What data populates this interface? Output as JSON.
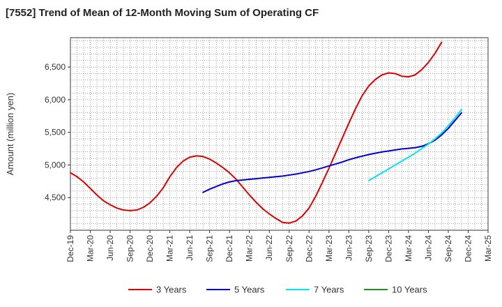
{
  "chart_data": {
    "type": "line",
    "title": "[7552]  Trend of Mean of 12-Month Moving Sum of Operating CF",
    "xlabel": "",
    "ylabel": "Amount (million yen)",
    "ylim": [
      4000,
      6950
    ],
    "yticks": [
      4500,
      5000,
      5500,
      6000,
      6500
    ],
    "ytick_labels": [
      "4,500",
      "5,000",
      "5,500",
      "6,000",
      "6,500"
    ],
    "x_start": "Dec-19",
    "x_months_span": 63,
    "xticks": [
      "Dec-19",
      "Mar-20",
      "Jun-20",
      "Sep-20",
      "Dec-20",
      "Mar-21",
      "Jun-21",
      "Sep-21",
      "Dec-21",
      "Mar-22",
      "Jun-22",
      "Sep-22",
      "Dec-22",
      "Mar-23",
      "Jun-23",
      "Sep-23",
      "Dec-23",
      "Mar-24",
      "Jun-24",
      "Sep-24",
      "Dec-24",
      "Mar-25"
    ],
    "grid": true,
    "legend_position": "bottom",
    "series": [
      {
        "name": "3 Years",
        "color": "#dd0000",
        "start_month": 0,
        "values": [
          4880,
          4820,
          4740,
          4640,
          4540,
          4450,
          4390,
          4340,
          4310,
          4300,
          4310,
          4350,
          4420,
          4520,
          4650,
          4820,
          4960,
          5060,
          5120,
          5140,
          5130,
          5090,
          5030,
          4960,
          4880,
          4780,
          4660,
          4540,
          4430,
          4330,
          4250,
          4180,
          4120,
          4110,
          4140,
          4220,
          4340,
          4520,
          4730,
          4950,
          5180,
          5410,
          5640,
          5860,
          6060,
          6210,
          6310,
          6380,
          6410,
          6400,
          6360,
          6350,
          6380,
          6460,
          6570,
          6710,
          6880
        ]
      },
      {
        "name": "5 Years",
        "color": "#0000cc",
        "start_month": 20,
        "values": [
          4580,
          4630,
          4670,
          4710,
          4740,
          4760,
          4770,
          4780,
          4790,
          4800,
          4810,
          4820,
          4830,
          4845,
          4860,
          4880,
          4900,
          4925,
          4955,
          4985,
          5015,
          5045,
          5080,
          5110,
          5135,
          5160,
          5180,
          5200,
          5215,
          5230,
          5245,
          5255,
          5265,
          5285,
          5325,
          5380,
          5460,
          5560,
          5680,
          5800
        ]
      },
      {
        "name": "7 Years",
        "color": "#00e5ee",
        "start_month": 45,
        "values": [
          4760,
          4820,
          4880,
          4940,
          5000,
          5060,
          5120,
          5180,
          5250,
          5320,
          5400,
          5490,
          5600,
          5720,
          5850
        ]
      },
      {
        "name": "10 Years",
        "color": "#228b22",
        "start_month": 0,
        "values": []
      }
    ]
  }
}
